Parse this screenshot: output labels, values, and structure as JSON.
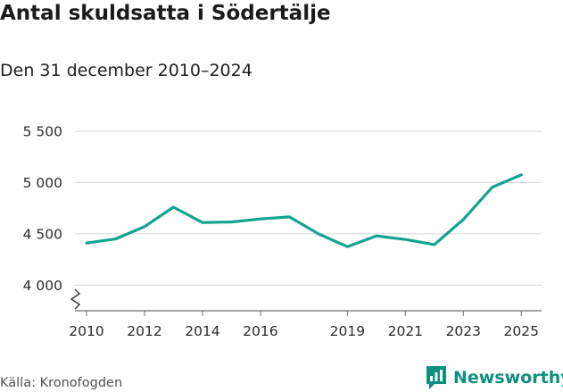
{
  "header": {
    "title": "Antal skuldsatta i Södertälje",
    "subtitle": "Den 31 december 2010–2024"
  },
  "footer": {
    "source": "Källa: Kronofogden",
    "brand": "Newsworthy"
  },
  "colors": {
    "line": "#12a391",
    "grid": "#d6d6d6",
    "brand": "#0f8f7f"
  },
  "icons": {
    "brand_logo": "bar-chart-speech-bubble-icon",
    "axis_break": "zigzag-axis-break-icon"
  },
  "chart_data": {
    "type": "line",
    "title": "Antal skuldsatta i Södertälje",
    "subtitle": "Den 31 december 2010–2024",
    "xlabel": "",
    "ylabel": "",
    "xlim": [
      2009.6,
      2025.7
    ],
    "ylim": [
      3750,
      5500
    ],
    "grid": true,
    "y_ticks": [
      {
        "value": 4000,
        "label": "4 000"
      },
      {
        "value": 4500,
        "label": "4 500"
      },
      {
        "value": 5000,
        "label": "5 000"
      },
      {
        "value": 5500,
        "label": "5 500"
      }
    ],
    "x_ticks": [
      {
        "value": 2010,
        "label": "2010"
      },
      {
        "value": 2012,
        "label": "2012"
      },
      {
        "value": 2014,
        "label": "2014"
      },
      {
        "value": 2016,
        "label": "2016"
      },
      {
        "value": 2019,
        "label": "2019"
      },
      {
        "value": 2021,
        "label": "2021"
      },
      {
        "value": 2023,
        "label": "2023"
      },
      {
        "value": 2025,
        "label": "2025"
      }
    ],
    "series": [
      {
        "name": "Antal skuldsatta",
        "x": [
          2010,
          2011,
          2012,
          2013,
          2014,
          2015,
          2016,
          2017,
          2018,
          2019,
          2020,
          2021,
          2022,
          2023,
          2024,
          2025
        ],
        "values": [
          4410,
          4450,
          4570,
          4760,
          4610,
          4615,
          4645,
          4665,
          4500,
          4375,
          4480,
          4445,
          4395,
          4640,
          4955,
          5075
        ]
      }
    ]
  }
}
